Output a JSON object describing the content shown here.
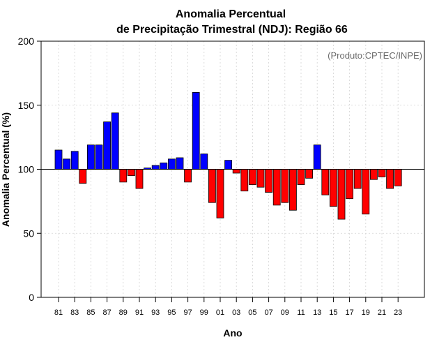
{
  "chart_data": {
    "type": "bar",
    "title_line1": "Anomalia Percentual",
    "title_line2": "de Precipitação Trimestral (NDJ): Região 66",
    "xlabel": "Ano",
    "ylabel": "Anomalia Percentual (%)",
    "credit": "(Produto:CPTEC/INPE)",
    "ylim": [
      0,
      200
    ],
    "yticks": [
      0,
      50,
      100,
      150,
      200
    ],
    "baseline": 100,
    "grid": true,
    "colors": {
      "above": "#0000ff",
      "below": "#ff0000",
      "edge": "#000000",
      "grid": "#d3d3d3"
    },
    "categories": [
      "81",
      "82",
      "83",
      "84",
      "85",
      "86",
      "87",
      "88",
      "89",
      "90",
      "91",
      "92",
      "93",
      "94",
      "95",
      "96",
      "97",
      "98",
      "99",
      "00",
      "01",
      "02",
      "03",
      "04",
      "05",
      "06",
      "07",
      "08",
      "09",
      "10",
      "11",
      "12",
      "13",
      "14",
      "15",
      "16",
      "17",
      "18",
      "19",
      "20",
      "21",
      "22",
      "23",
      "24"
    ],
    "tick_labels": [
      "81",
      "83",
      "85",
      "87",
      "89",
      "91",
      "93",
      "95",
      "97",
      "99",
      "01",
      "03",
      "05",
      "07",
      "09",
      "11",
      "13",
      "15",
      "17",
      "19",
      "21",
      "23"
    ],
    "values": [
      115,
      108,
      114,
      89,
      119,
      119,
      137,
      144,
      90,
      95,
      85,
      101,
      103,
      105,
      108,
      109,
      90,
      160,
      112,
      74,
      62,
      107,
      97,
      83,
      88,
      86,
      82,
      72,
      74,
      68,
      88,
      93,
      119,
      80,
      71,
      61,
      77,
      85,
      65,
      92,
      94,
      85,
      87,
      100
    ]
  }
}
